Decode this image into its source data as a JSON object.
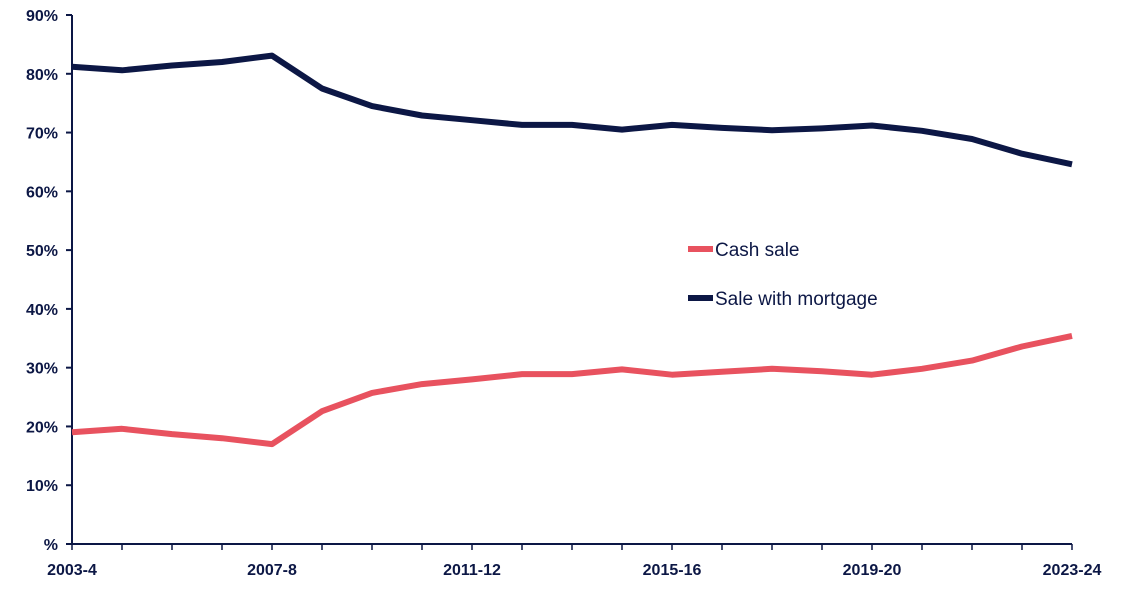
{
  "chart_data": {
    "type": "line",
    "title": "",
    "xlabel": "",
    "ylabel": "",
    "x": [
      "2003-4",
      "2004-5",
      "2005-6",
      "2006-7",
      "2007-8",
      "2008-9",
      "2009-10",
      "2010-11",
      "2011-12",
      "2012-13",
      "2013-14",
      "2014-15",
      "2015-16",
      "2016-17",
      "2017-18",
      "2018-19",
      "2019-20",
      "2020-21",
      "2021-22",
      "2022-23",
      "2023-24"
    ],
    "x_tick_labels": [
      "2003-4",
      "2007-8",
      "2011-12",
      "2015-16",
      "2019-20",
      "2023-24"
    ],
    "y_tick_labels": [
      "%",
      "10%",
      "20%",
      "30%",
      "40%",
      "50%",
      "60%",
      "70%",
      "80%",
      "90%"
    ],
    "ylim": [
      0,
      90
    ],
    "grid": false,
    "legend_position": "center-right",
    "series": [
      {
        "name": "Cash sale",
        "color": "#e8525f",
        "values": [
          19,
          19.6,
          18.7,
          18,
          17,
          22.6,
          25.7,
          27.2,
          28,
          28.9,
          28.9,
          29.7,
          28.8,
          29.3,
          29.8,
          29.4,
          28.8,
          29.8,
          31.2,
          33.6,
          35.4
        ]
      },
      {
        "name": "Sale with mortgage",
        "color": "#0c1745",
        "values": [
          81.2,
          80.6,
          81.4,
          82,
          83.1,
          77.5,
          74.5,
          72.9,
          72.1,
          71.3,
          71.3,
          70.5,
          71.3,
          70.8,
          70.4,
          70.7,
          71.2,
          70.3,
          68.9,
          66.4,
          64.6
        ]
      }
    ]
  }
}
